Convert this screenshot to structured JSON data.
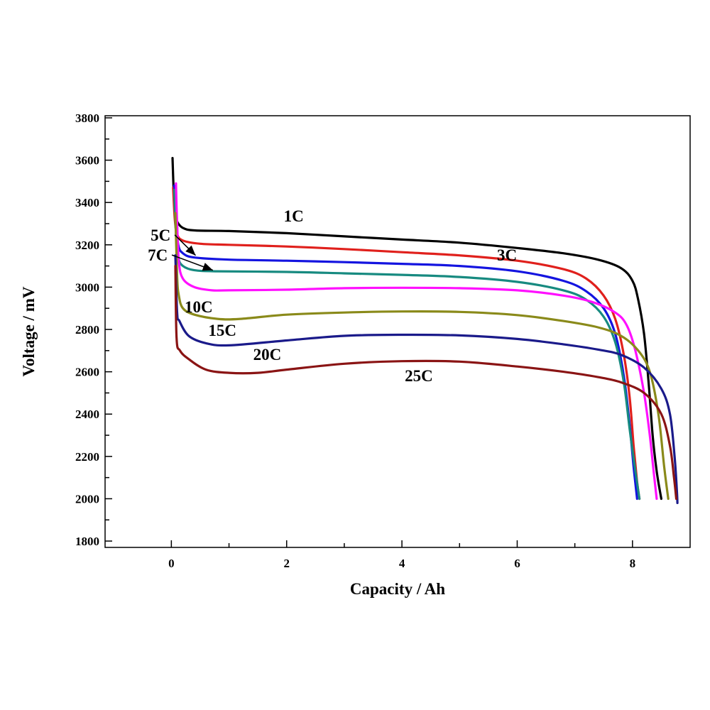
{
  "chart_data": {
    "type": "line",
    "title": "",
    "xlabel": "Capacity / Ah",
    "ylabel": "Voltage / mV",
    "xlim": [
      -1.15,
      9
    ],
    "ylim": [
      1770,
      3810
    ],
    "x_ticks": [
      0,
      2,
      4,
      6,
      8
    ],
    "x_tick_labels": [
      "0",
      "2",
      "4",
      "6",
      "8"
    ],
    "x_minor_ticks": [
      1,
      3,
      5,
      7
    ],
    "y_ticks": [
      1800,
      2000,
      2200,
      2400,
      2600,
      2800,
      3000,
      3200,
      3400,
      3600,
      3800
    ],
    "y_tick_labels": [
      "1800",
      "2000",
      "2200",
      "2400",
      "2600",
      "2800",
      "3000",
      "3200",
      "3400",
      "3600",
      "3800"
    ],
    "y_minor_ticks": [
      1900,
      2100,
      2300,
      2500,
      2700,
      2900,
      3100,
      3300,
      3500,
      3700
    ],
    "grid": false,
    "series": [
      {
        "name": "1C",
        "color": "#000000",
        "points": [
          [
            0.02,
            3610
          ],
          [
            0.04,
            3450
          ],
          [
            0.06,
            3360
          ],
          [
            0.1,
            3310
          ],
          [
            0.2,
            3280
          ],
          [
            0.4,
            3268
          ],
          [
            1,
            3265
          ],
          [
            2,
            3255
          ],
          [
            3,
            3240
          ],
          [
            4,
            3225
          ],
          [
            5,
            3210
          ],
          [
            6,
            3185
          ],
          [
            6.8,
            3160
          ],
          [
            7.4,
            3130
          ],
          [
            7.8,
            3090
          ],
          [
            8.0,
            3030
          ],
          [
            8.1,
            2940
          ],
          [
            8.2,
            2780
          ],
          [
            8.28,
            2550
          ],
          [
            8.35,
            2300
          ],
          [
            8.42,
            2130
          ],
          [
            8.5,
            2000
          ]
        ]
      },
      {
        "name": "3C",
        "color": "#e0201c",
        "points": [
          [
            0.03,
            3470
          ],
          [
            0.06,
            3320
          ],
          [
            0.1,
            3250
          ],
          [
            0.2,
            3220
          ],
          [
            0.5,
            3205
          ],
          [
            1,
            3200
          ],
          [
            2,
            3192
          ],
          [
            3,
            3180
          ],
          [
            4,
            3165
          ],
          [
            5,
            3150
          ],
          [
            6,
            3125
          ],
          [
            6.8,
            3085
          ],
          [
            7.2,
            3040
          ],
          [
            7.5,
            2960
          ],
          [
            7.7,
            2850
          ],
          [
            7.85,
            2680
          ],
          [
            7.95,
            2480
          ],
          [
            8.02,
            2250
          ],
          [
            8.08,
            2080
          ],
          [
            8.12,
            2000
          ]
        ]
      },
      {
        "name": "5C",
        "color": "#1414e0",
        "points": [
          [
            0.05,
            3480
          ],
          [
            0.08,
            3320
          ],
          [
            0.12,
            3200
          ],
          [
            0.2,
            3160
          ],
          [
            0.4,
            3140
          ],
          [
            1,
            3130
          ],
          [
            2,
            3125
          ],
          [
            3,
            3118
          ],
          [
            4,
            3110
          ],
          [
            5,
            3100
          ],
          [
            6,
            3075
          ],
          [
            6.8,
            3030
          ],
          [
            7.2,
            2980
          ],
          [
            7.5,
            2900
          ],
          [
            7.7,
            2780
          ],
          [
            7.85,
            2580
          ],
          [
            7.95,
            2350
          ],
          [
            8.02,
            2150
          ],
          [
            8.08,
            2000
          ]
        ]
      },
      {
        "name": "7C",
        "color": "#178a80",
        "points": [
          [
            0.05,
            3460
          ],
          [
            0.08,
            3250
          ],
          [
            0.12,
            3140
          ],
          [
            0.2,
            3100
          ],
          [
            0.4,
            3080
          ],
          [
            0.8,
            3075
          ],
          [
            2,
            3072
          ],
          [
            3,
            3065
          ],
          [
            4,
            3058
          ],
          [
            5,
            3048
          ],
          [
            6,
            3025
          ],
          [
            6.8,
            2985
          ],
          [
            7.2,
            2940
          ],
          [
            7.5,
            2860
          ],
          [
            7.7,
            2740
          ],
          [
            7.85,
            2550
          ],
          [
            7.95,
            2330
          ],
          [
            8.05,
            2130
          ],
          [
            8.12,
            2000
          ]
        ]
      },
      {
        "name": "10C",
        "color": "#ff10ff",
        "points": [
          [
            0.08,
            3490
          ],
          [
            0.1,
            3300
          ],
          [
            0.13,
            3120
          ],
          [
            0.2,
            3040
          ],
          [
            0.4,
            3000
          ],
          [
            0.7,
            2985
          ],
          [
            1,
            2985
          ],
          [
            2,
            2988
          ],
          [
            3,
            2995
          ],
          [
            4,
            2997
          ],
          [
            5,
            2995
          ],
          [
            6,
            2985
          ],
          [
            6.8,
            2960
          ],
          [
            7.3,
            2930
          ],
          [
            7.7,
            2880
          ],
          [
            7.9,
            2820
          ],
          [
            8.05,
            2700
          ],
          [
            8.2,
            2500
          ],
          [
            8.3,
            2300
          ],
          [
            8.37,
            2120
          ],
          [
            8.42,
            2000
          ]
        ]
      },
      {
        "name": "15C",
        "color": "#8a8a1a",
        "points": [
          [
            0.07,
            3350
          ],
          [
            0.1,
            3050
          ],
          [
            0.13,
            2960
          ],
          [
            0.2,
            2900
          ],
          [
            0.4,
            2870
          ],
          [
            0.8,
            2850
          ],
          [
            1.2,
            2850
          ],
          [
            2,
            2870
          ],
          [
            3,
            2880
          ],
          [
            4,
            2885
          ],
          [
            5,
            2883
          ],
          [
            6,
            2868
          ],
          [
            6.8,
            2840
          ],
          [
            7.4,
            2810
          ],
          [
            7.8,
            2770
          ],
          [
            8.1,
            2700
          ],
          [
            8.3,
            2600
          ],
          [
            8.45,
            2400
          ],
          [
            8.55,
            2150
          ],
          [
            8.62,
            2000
          ]
        ]
      },
      {
        "name": "20C",
        "color": "#1a1a8a",
        "points": [
          [
            0.07,
            3150
          ],
          [
            0.1,
            2880
          ],
          [
            0.14,
            2840
          ],
          [
            0.3,
            2770
          ],
          [
            0.6,
            2735
          ],
          [
            1,
            2725
          ],
          [
            2,
            2748
          ],
          [
            3,
            2770
          ],
          [
            4,
            2775
          ],
          [
            5,
            2772
          ],
          [
            6,
            2755
          ],
          [
            6.8,
            2730
          ],
          [
            7.4,
            2705
          ],
          [
            7.8,
            2680
          ],
          [
            8.2,
            2620
          ],
          [
            8.5,
            2520
          ],
          [
            8.65,
            2400
          ],
          [
            8.73,
            2200
          ],
          [
            8.77,
            2040
          ],
          [
            8.78,
            1980
          ]
        ]
      },
      {
        "name": "25C",
        "color": "#8a1414",
        "points": [
          [
            0.07,
            3100
          ],
          [
            0.09,
            2760
          ],
          [
            0.15,
            2700
          ],
          [
            0.3,
            2660
          ],
          [
            0.6,
            2610
          ],
          [
            1,
            2595
          ],
          [
            1.5,
            2595
          ],
          [
            2,
            2610
          ],
          [
            3,
            2638
          ],
          [
            4,
            2650
          ],
          [
            5,
            2648
          ],
          [
            6,
            2625
          ],
          [
            6.8,
            2600
          ],
          [
            7.4,
            2575
          ],
          [
            7.8,
            2550
          ],
          [
            8.2,
            2500
          ],
          [
            8.5,
            2400
          ],
          [
            8.65,
            2250
          ],
          [
            8.72,
            2100
          ],
          [
            8.76,
            2000
          ]
        ]
      }
    ],
    "annotations": [
      {
        "text": "1C",
        "series": "1C",
        "x": 1.95,
        "y": 3310
      },
      {
        "text": "3C",
        "series": "3C",
        "x": 5.65,
        "y": 3125
      },
      {
        "text": "5C",
        "series": "5C",
        "x": -0.36,
        "y": 3220,
        "arrow_to": [
          0.42,
          3150
        ]
      },
      {
        "text": "7C",
        "series": "7C",
        "x": -0.41,
        "y": 3125,
        "arrow_to": [
          0.72,
          3080
        ]
      },
      {
        "text": "10C",
        "series": "10C",
        "x": 0.23,
        "y": 2880
      },
      {
        "text": "15C",
        "series": "15C",
        "x": 0.64,
        "y": 2770
      },
      {
        "text": "20C",
        "series": "20C",
        "x": 1.42,
        "y": 2655
      },
      {
        "text": "25C",
        "series": "25C",
        "x": 4.05,
        "y": 2555
      }
    ]
  }
}
